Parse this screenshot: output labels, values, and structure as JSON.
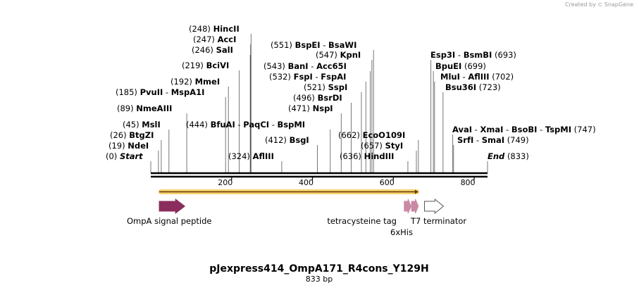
{
  "branding": {
    "created_by": "Created by",
    "app": "SnapGene"
  },
  "sequence": {
    "name": "pJexpress414_OmpA171_R4cons_Y129H",
    "length_label": "833 bp",
    "length": 833
  },
  "ticks": [
    {
      "label": "200",
      "pos": 200
    },
    {
      "label": "400",
      "pos": 400
    },
    {
      "label": "600",
      "pos": 600
    },
    {
      "label": "800",
      "pos": 800
    }
  ],
  "sites": [
    {
      "id": "start",
      "num": "(0)",
      "names": [
        "Start"
      ],
      "pos": 0,
      "italic": true
    },
    {
      "id": "ndei",
      "num": "(19)",
      "names": [
        "NdeI"
      ],
      "pos": 19
    },
    {
      "id": "btgzi",
      "num": "(26)",
      "names": [
        "BtgZI"
      ],
      "pos": 26
    },
    {
      "id": "msli",
      "num": "(45)",
      "names": [
        "MslI"
      ],
      "pos": 45
    },
    {
      "id": "nmeaiii",
      "num": "(89)",
      "names": [
        "NmeAIII"
      ],
      "pos": 89
    },
    {
      "id": "pvuii",
      "num": "(185)",
      "names": [
        "PvuII",
        "MspA1I"
      ],
      "pos": 185
    },
    {
      "id": "mmei",
      "num": "(192)",
      "names": [
        "MmeI"
      ],
      "pos": 192
    },
    {
      "id": "bcivi",
      "num": "(219)",
      "names": [
        "BciVI"
      ],
      "pos": 219
    },
    {
      "id": "sali",
      "num": "(246)",
      "names": [
        "SalI"
      ],
      "pos": 246
    },
    {
      "id": "acci",
      "num": "(247)",
      "names": [
        "AccI"
      ],
      "pos": 247
    },
    {
      "id": "hincii",
      "num": "(248)",
      "names": [
        "HincII"
      ],
      "pos": 248
    },
    {
      "id": "afliii",
      "num": "(324)",
      "names": [
        "AflIII"
      ],
      "pos": 324
    },
    {
      "id": "bsgi",
      "num": "(412)",
      "names": [
        "BsgI"
      ],
      "pos": 412
    },
    {
      "id": "bfuai",
      "num": "(444)",
      "names": [
        "BfuAI",
        "PaqCI",
        "BspMI"
      ],
      "pos": 444
    },
    {
      "id": "nspi",
      "num": "(471)",
      "names": [
        "NspI"
      ],
      "pos": 471
    },
    {
      "id": "bsrdi",
      "num": "(496)",
      "names": [
        "BsrDI"
      ],
      "pos": 496
    },
    {
      "id": "sspi",
      "num": "(521)",
      "names": [
        "SspI"
      ],
      "pos": 521
    },
    {
      "id": "fspi",
      "num": "(532)",
      "names": [
        "FspI",
        "FspAI"
      ],
      "pos": 532
    },
    {
      "id": "bani",
      "num": "(543)",
      "names": [
        "BanI",
        "Acc65I"
      ],
      "pos": 543
    },
    {
      "id": "kpni",
      "num": "(547)",
      "names": [
        "KpnI"
      ],
      "pos": 547
    },
    {
      "id": "bspei",
      "num": "(551)",
      "names": [
        "BspEI",
        "BsaWI"
      ],
      "pos": 551
    },
    {
      "id": "hindiii",
      "num": "(636)",
      "names": [
        "HindIII"
      ],
      "pos": 636
    },
    {
      "id": "styi",
      "num": "(657)",
      "names": [
        "StyI"
      ],
      "pos": 657
    },
    {
      "id": "ecoo109i",
      "num": "(662)",
      "names": [
        "EcoO109I"
      ],
      "pos": 662
    },
    {
      "id": "esp3i",
      "num": "(693)",
      "names": [
        "Esp3I",
        "BsmBI"
      ],
      "pos": 693
    },
    {
      "id": "bpuei",
      "num": "(699)",
      "names": [
        "BpuEI"
      ],
      "pos": 699
    },
    {
      "id": "mlui",
      "num": "(702)",
      "names": [
        "MluI",
        "AflIII"
      ],
      "pos": 702
    },
    {
      "id": "bsu36i",
      "num": "(723)",
      "names": [
        "Bsu36I"
      ],
      "pos": 723
    },
    {
      "id": "avai",
      "num": "(747)",
      "names": [
        "AvaI",
        "XmaI",
        "BsoBI",
        "TspMI"
      ],
      "pos": 747
    },
    {
      "id": "srfi",
      "num": "(749)",
      "names": [
        "SrfI",
        "SmaI"
      ],
      "pos": 749
    },
    {
      "id": "end",
      "num": "(833)",
      "names": [
        "End"
      ],
      "pos": 833,
      "italic": true
    }
  ],
  "features": [
    {
      "id": "ompa",
      "label": "OmpA signal peptide",
      "start": 21,
      "end": 84,
      "color": "#8b2d5c"
    },
    {
      "id": "tetracysteine",
      "label": "tetracysteine tag",
      "start": 627,
      "end": 644,
      "color": "#c98aa5"
    },
    {
      "id": "his",
      "label": "6xHis",
      "start": 645,
      "end": 662,
      "color": "#c98aa5"
    },
    {
      "id": "t7term",
      "label": "T7 terminator",
      "start": 677,
      "end": 724,
      "color": "#ffffff"
    }
  ],
  "orf": {
    "start": 21,
    "end": 662,
    "color": "#f5c242"
  }
}
